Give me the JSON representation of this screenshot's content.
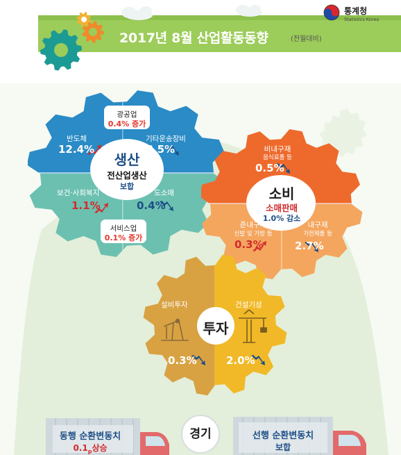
{
  "header": {
    "title": "2017년 8월 산업활동동향",
    "note": "(전월대비)",
    "logo": {
      "name": "통계청",
      "sub": "Statistics Korea"
    }
  },
  "production": {
    "heading": "생산",
    "summary_label": "전산업생산",
    "summary_value": "보합",
    "mining": {
      "label": "광공업",
      "value": "0.4% 증가"
    },
    "semiconductor": {
      "label": "반도체",
      "value": "12.4%"
    },
    "other_transport": {
      "label": "기타운송장비",
      "value": "18.5%"
    },
    "health_welfare": {
      "label": "보건·사회복지",
      "value": "1.1%"
    },
    "wholesale": {
      "label": "도소매",
      "value": "0.4%"
    },
    "services": {
      "label": "서비스업",
      "value": "0.1% 증가"
    }
  },
  "consumption": {
    "heading": "소비",
    "summary_label": "소매판매",
    "summary_value": "1.0% 감소",
    "nondurable": {
      "label": "비내구재",
      "sub": "음식료품 등",
      "value": "0.5%"
    },
    "semidurable": {
      "label": "준내구재",
      "sub": "신발 및 가방 등",
      "value": "0.3%"
    },
    "durable": {
      "label": "내구재",
      "sub": "가전제품 등",
      "value": "2.7%"
    }
  },
  "investment": {
    "heading": "투자",
    "equipment": {
      "label": "설비투자",
      "value": "0.3%"
    },
    "construction": {
      "label": "건설기성",
      "value": "2.0%"
    }
  },
  "economy": {
    "heading": "경기",
    "coincident": {
      "label": "동행 순환변동치",
      "value": "0.1",
      "sub": "p",
      "suffix": "상승"
    },
    "leading": {
      "label": "선행 순환변동치",
      "value": "보합"
    }
  },
  "colors": {
    "banner": "#9ccc5a",
    "production_top": "#2a8bc6",
    "production_bottom": "#6cc0b0",
    "consumption_top": "#ee6a2c",
    "consumption_bottom": "#f4a65e",
    "investment_left": "#d8a243",
    "investment_right": "#f1b928",
    "up": "#d12c2c",
    "down": "#1d4e87"
  }
}
